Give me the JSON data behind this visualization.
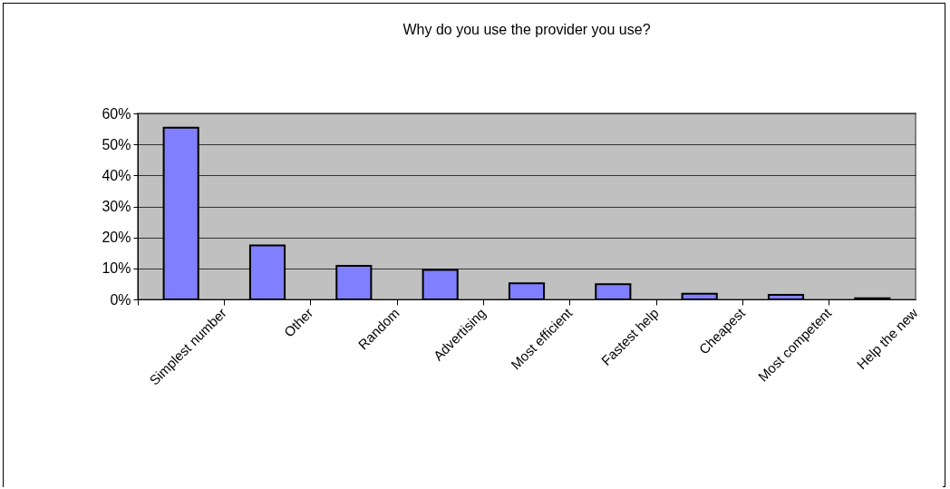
{
  "chart_data": {
    "type": "bar",
    "title": "Why do you use the provider you use?",
    "categories": [
      "Simplest number",
      "Other",
      "Random",
      "Advertising",
      "Most efficient",
      "Fastest help",
      "Cheapest",
      "Most competent",
      "Help the new"
    ],
    "values": [
      55.4,
      17.4,
      10.8,
      9.5,
      5.2,
      4.9,
      1.8,
      1.5,
      0.4
    ],
    "color": "#8080ff",
    "ylim": [
      0,
      60
    ],
    "yticks": [
      {
        "value": 0,
        "label": "0%"
      },
      {
        "value": 10,
        "label": "10%"
      },
      {
        "value": 20,
        "label": "20%"
      },
      {
        "value": 30,
        "label": "30%"
      },
      {
        "value": 40,
        "label": "40%"
      },
      {
        "value": 50,
        "label": "50%"
      },
      {
        "value": 60,
        "label": "60%"
      }
    ],
    "grid": "y"
  }
}
